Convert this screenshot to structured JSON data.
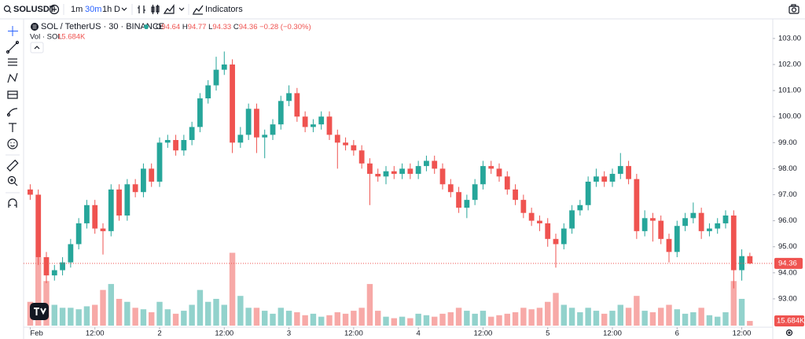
{
  "toolbar": {
    "symbol": "SOLUSDT",
    "intervals": [
      "1m",
      "30m",
      "1h",
      "D"
    ],
    "indicators": "Indicators"
  },
  "chart_data": {
    "type": "candlestick",
    "title": "SOL / TetherUS · 30 · BINANCE",
    "ohlc_labels": [
      "O",
      "H",
      "L",
      "C"
    ],
    "change_label": "−0.28 (−0.30%)",
    "volume_title": "Vol · SOL",
    "last_volume_label": "15.684K",
    "up_color": "#26a69a",
    "down_color": "#ef5350",
    "grid": false,
    "x": [
      0,
      3,
      6,
      9,
      12,
      15,
      18,
      21,
      24,
      27,
      30,
      33,
      36,
      39,
      42,
      45,
      48,
      51,
      54,
      57,
      60,
      63,
      66,
      69,
      72,
      75,
      78,
      81,
      84,
      87,
      90,
      93,
      96,
      99,
      102,
      105,
      108,
      111,
      114,
      117,
      120,
      123,
      126,
      129,
      132,
      135,
      138,
      141,
      144,
      147,
      150,
      153,
      156,
      159,
      162,
      165,
      168,
      171,
      174,
      177,
      180,
      183,
      186,
      189,
      192,
      195,
      198,
      201,
      204,
      207,
      210,
      213,
      216,
      219,
      222,
      225,
      228,
      231,
      234,
      237,
      240,
      243,
      246,
      249,
      252,
      255,
      258,
      261,
      264,
      267
    ],
    "open": [
      97.2,
      97.0,
      94.6,
      93.9,
      94.1,
      94.4,
      95.1,
      95.9,
      96.6,
      95.7,
      95.6,
      97.2,
      96.2,
      97.4,
      97.1,
      98.0,
      97.5,
      99.0,
      99.1,
      98.7,
      99.1,
      99.6,
      100.7,
      101.2,
      101.8,
      102.0,
      99.0,
      99.3,
      100.3,
      99.2,
      99.3,
      99.7,
      100.6,
      100.9,
      100.0,
      99.6,
      99.7,
      100.0,
      99.3,
      99.0,
      98.9,
      98.7,
      98.2,
      97.8,
      97.7,
      97.9,
      97.8,
      98.0,
      97.8,
      98.1,
      98.3,
      98.0,
      97.4,
      97.1,
      96.5,
      96.8,
      97.4,
      98.1,
      98.0,
      97.7,
      97.2,
      96.8,
      96.3,
      96.0,
      95.9,
      95.3,
      95.1,
      95.7,
      96.4,
      96.6,
      97.5,
      97.7,
      97.5,
      97.8,
      98.1,
      97.6,
      95.6,
      96.1,
      96.0,
      95.3,
      94.8,
      95.8,
      96.1,
      96.3,
      95.6,
      95.7,
      95.9,
      96.2,
      94.1,
      94.64
    ],
    "high": [
      97.4,
      97.2,
      94.8,
      94.3,
      94.6,
      95.3,
      96.1,
      96.8,
      96.8,
      95.9,
      97.4,
      97.4,
      97.6,
      97.6,
      98.2,
      98.2,
      99.2,
      99.3,
      99.3,
      99.3,
      99.8,
      100.9,
      101.4,
      102.3,
      102.5,
      102.2,
      99.6,
      100.5,
      100.5,
      99.5,
      99.9,
      100.8,
      101.2,
      101.1,
      100.2,
      99.9,
      100.2,
      100.2,
      99.5,
      99.2,
      99.1,
      98.9,
      98.4,
      98.0,
      98.1,
      98.1,
      98.2,
      98.2,
      98.3,
      98.5,
      98.5,
      98.2,
      97.6,
      97.3,
      97.0,
      97.6,
      98.3,
      98.3,
      98.2,
      97.9,
      97.4,
      97.0,
      96.5,
      96.2,
      96.1,
      95.5,
      95.9,
      96.6,
      96.8,
      97.7,
      98.0,
      97.9,
      98.0,
      98.6,
      98.3,
      97.8,
      96.4,
      96.3,
      96.2,
      95.5,
      96.0,
      96.3,
      96.7,
      96.5,
      95.9,
      96.1,
      96.4,
      96.4,
      94.9,
      94.77
    ],
    "low": [
      96.8,
      94.3,
      93.6,
      93.7,
      93.9,
      94.2,
      94.9,
      95.7,
      95.5,
      94.7,
      95.4,
      96.0,
      96.0,
      96.9,
      96.9,
      97.3,
      97.3,
      98.8,
      98.5,
      98.5,
      98.9,
      99.4,
      100.5,
      101.0,
      101.6,
      98.6,
      98.8,
      99.1,
      98.6,
      98.4,
      99.1,
      99.5,
      100.4,
      99.8,
      99.4,
      99.4,
      99.5,
      99.1,
      98.0,
      98.7,
      98.5,
      98.0,
      96.6,
      97.5,
      97.4,
      97.6,
      97.6,
      97.6,
      97.6,
      97.9,
      97.8,
      97.2,
      96.9,
      96.3,
      96.1,
      96.6,
      97.2,
      97.8,
      97.5,
      97.0,
      96.6,
      96.1,
      95.8,
      95.6,
      95.0,
      94.2,
      94.9,
      95.5,
      96.2,
      96.4,
      97.3,
      97.3,
      97.3,
      97.6,
      97.4,
      95.3,
      95.4,
      95.2,
      95.1,
      94.4,
      94.6,
      95.6,
      95.9,
      95.3,
      95.4,
      95.5,
      95.7,
      93.4,
      93.7,
      94.33
    ],
    "close": [
      97.0,
      94.6,
      93.9,
      94.1,
      94.4,
      95.1,
      95.9,
      96.6,
      95.7,
      95.6,
      97.2,
      96.2,
      97.4,
      97.1,
      98.0,
      97.5,
      99.0,
      99.1,
      98.7,
      99.1,
      99.6,
      100.7,
      101.2,
      101.8,
      102.0,
      99.0,
      99.3,
      100.3,
      99.2,
      99.3,
      99.7,
      100.6,
      100.9,
      100.0,
      99.6,
      99.7,
      100.0,
      99.3,
      99.0,
      98.9,
      98.7,
      98.2,
      97.8,
      97.7,
      97.9,
      97.8,
      98.0,
      97.8,
      98.1,
      98.3,
      98.0,
      97.4,
      97.1,
      96.5,
      96.8,
      97.4,
      98.1,
      98.0,
      97.7,
      97.2,
      96.8,
      96.3,
      96.0,
      95.9,
      95.3,
      95.1,
      95.7,
      96.4,
      96.6,
      97.5,
      97.7,
      97.5,
      97.8,
      98.1,
      97.6,
      95.6,
      96.1,
      96.0,
      95.3,
      94.8,
      95.8,
      96.1,
      96.3,
      95.6,
      95.7,
      95.9,
      96.2,
      94.1,
      94.64,
      94.36
    ],
    "volume": [
      80,
      230,
      150,
      70,
      60,
      60,
      55,
      65,
      70,
      120,
      140,
      90,
      80,
      60,
      55,
      45,
      80,
      55,
      40,
      50,
      70,
      120,
      80,
      90,
      70,
      245,
      100,
      60,
      60,
      50,
      40,
      60,
      50,
      45,
      35,
      40,
      30,
      35,
      45,
      40,
      50,
      60,
      140,
      50,
      30,
      25,
      30,
      25,
      40,
      35,
      30,
      40,
      45,
      60,
      50,
      40,
      50,
      30,
      35,
      40,
      45,
      60,
      55,
      60,
      80,
      110,
      70,
      60,
      45,
      60,
      50,
      40,
      50,
      70,
      60,
      100,
      50,
      45,
      60,
      70,
      55,
      40,
      45,
      60,
      35,
      30,
      45,
      150,
      90,
      15.684
    ],
    "volume_lim": [
      0,
      1000
    ],
    "xlim": [
      -1,
      275.5
    ],
    "xticks": [
      {
        "value": 0,
        "label": "Feb"
      },
      {
        "value": 24,
        "label": "12:00"
      },
      {
        "value": 48,
        "label": "2"
      },
      {
        "value": 72,
        "label": "12:00"
      },
      {
        "value": 96,
        "label": "3"
      },
      {
        "value": 120,
        "label": "12:00"
      },
      {
        "value": 144,
        "label": "4"
      },
      {
        "value": 168,
        "label": "12:00"
      },
      {
        "value": 192,
        "label": "5"
      },
      {
        "value": 216,
        "label": "12:00"
      },
      {
        "value": 240,
        "label": "6"
      },
      {
        "value": 264,
        "label": "12:00"
      }
    ],
    "ylim": [
      91.91,
      103.33
    ],
    "yticks": [
      {
        "value": 93,
        "label": "93.00"
      },
      {
        "value": 94,
        "label": "94.00"
      },
      {
        "value": 95,
        "label": "95.00"
      },
      {
        "value": 96,
        "label": "96.00"
      },
      {
        "value": 97,
        "label": "97.00"
      },
      {
        "value": 98,
        "label": "98.00"
      },
      {
        "value": 99,
        "label": "99.00"
      },
      {
        "value": 100,
        "label": "100.00"
      },
      {
        "value": 101,
        "label": "101.00"
      },
      {
        "value": 102,
        "label": "102.00"
      },
      {
        "value": 103,
        "label": "103.00"
      }
    ]
  }
}
